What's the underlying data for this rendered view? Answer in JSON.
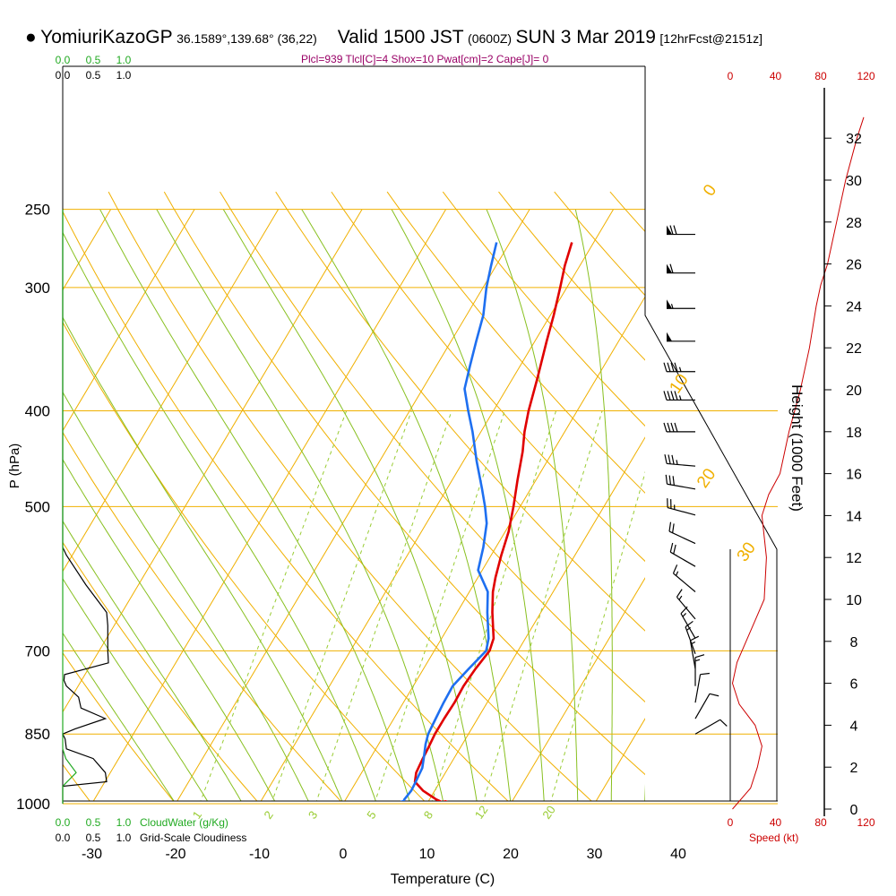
{
  "header": {
    "station": "YomiuriKazoGP",
    "coords": "36.1589°,139.68° (36,22)",
    "valid": "Valid 1500 JST",
    "utc": "(0600Z)",
    "date": "SUN 3 Mar 2019",
    "forecast": "[12hrFcst@2151z]",
    "indices": "Plcl=939 Tlcl[C]=4 Shox=10 Pwat[cm]=2 Cape[J]= 0"
  },
  "colors": {
    "temperature": "#e00000",
    "dewpoint": "#1e6ff0",
    "isotherm": "#f0b000",
    "dry_adiabat": "#f0b000",
    "moist_adiabat": "#88c020",
    "mixing_ratio": "#99cc33",
    "cloud_water": "#22aa22",
    "wind_speed": "#cc0000",
    "indices_text": "#990066"
  },
  "chart_data": {
    "type": "line",
    "subtype": "skew-t log-p sounding",
    "xlabel": "Temperature (C)",
    "ylabel": "P (hPa)",
    "right_axis_label": "Height (1000 Feet)",
    "x_ticks": [
      -30,
      -20,
      -10,
      0,
      10,
      20,
      30,
      40
    ],
    "xlim": [
      -35,
      36
    ],
    "pressure_ticks": [
      250,
      300,
      400,
      500,
      700,
      850,
      1000
    ],
    "pressure_tick_labels": [
      "250",
      "300",
      "400",
      "500",
      "700",
      "850",
      "1000"
    ],
    "ylim": [
      1000,
      250
    ],
    "log_pressure": true,
    "height_ticks": [
      0,
      2,
      4,
      6,
      8,
      10,
      12,
      14,
      16,
      18,
      20,
      22,
      24,
      26,
      28,
      30,
      32
    ],
    "height_tick_labels": [
      "0",
      "2",
      "4",
      "6",
      "8",
      "10",
      "12",
      "14",
      "16",
      "18",
      "20",
      "22",
      "24",
      "26",
      "28",
      "30",
      "32"
    ],
    "series": [
      {
        "name": "Temperature",
        "points": [
          [
            1000,
            12.2
          ],
          [
            990,
            10.8
          ],
          [
            970,
            8.6
          ],
          [
            950,
            7.0
          ],
          [
            930,
            6.5
          ],
          [
            900,
            6.3
          ],
          [
            880,
            6.2
          ],
          [
            850,
            6.0
          ],
          [
            820,
            6.0
          ],
          [
            790,
            6.1
          ],
          [
            760,
            6.0
          ],
          [
            730,
            6.2
          ],
          [
            700,
            6.6
          ],
          [
            680,
            6.2
          ],
          [
            640,
            4.2
          ],
          [
            610,
            2.8
          ],
          [
            590,
            2.1
          ],
          [
            560,
            1.2
          ],
          [
            530,
            0.4
          ],
          [
            500,
            -0.8
          ],
          [
            470,
            -2.2
          ],
          [
            440,
            -3.6
          ],
          [
            420,
            -4.8
          ],
          [
            400,
            -5.8
          ],
          [
            370,
            -7.1
          ],
          [
            340,
            -8.6
          ],
          [
            320,
            -9.6
          ],
          [
            300,
            -10.8
          ],
          [
            285,
            -11.8
          ],
          [
            270,
            -12.6
          ]
        ]
      },
      {
        "name": "Dewpoint",
        "points": [
          [
            1000,
            7.1
          ],
          [
            990,
            7.0
          ],
          [
            970,
            7.2
          ],
          [
            950,
            7.1
          ],
          [
            920,
            6.9
          ],
          [
            900,
            6.4
          ],
          [
            870,
            5.6
          ],
          [
            850,
            5.2
          ],
          [
            820,
            5.0
          ],
          [
            790,
            4.8
          ],
          [
            760,
            4.7
          ],
          [
            730,
            5.4
          ],
          [
            700,
            6.2
          ],
          [
            680,
            5.6
          ],
          [
            640,
            3.6
          ],
          [
            610,
            2.2
          ],
          [
            580,
            -0.5
          ],
          [
            550,
            -1.5
          ],
          [
            520,
            -2.8
          ],
          [
            500,
            -4.2
          ],
          [
            480,
            -5.8
          ],
          [
            450,
            -8.4
          ],
          [
            420,
            -11.0
          ],
          [
            400,
            -13.0
          ],
          [
            380,
            -15.0
          ],
          [
            360,
            -16.0
          ],
          [
            340,
            -17.0
          ],
          [
            320,
            -18.0
          ],
          [
            300,
            -19.6
          ],
          [
            285,
            -20.6
          ],
          [
            270,
            -21.6
          ]
        ]
      }
    ],
    "mixing_ratio_labels": [
      "1",
      "2",
      "3",
      "5",
      "8",
      "12",
      "20"
    ],
    "mixing_ratio_values": [
      1,
      2,
      3,
      5,
      8,
      12,
      20
    ],
    "isotherm_labels": [
      "0",
      "10",
      "20",
      "30"
    ],
    "isotherm_values": [
      0,
      10,
      20,
      30
    ],
    "isotherm_left_labels": [
      "10",
      "0",
      "-10",
      "-20",
      "-30"
    ],
    "isotherm_left_values": [
      10,
      0,
      -10,
      -20,
      -30
    ],
    "cloud_axis": {
      "water_ticks": [
        0.0,
        0.5,
        1.0
      ],
      "water_tick_labels": [
        "0.0",
        "0.5",
        "1.0"
      ],
      "cover_ticks": [
        0.0,
        0.5,
        1.0
      ],
      "cover_tick_labels": [
        "0.0",
        "0.5",
        "1.0"
      ],
      "water_label": "CloudWater (g/Kg)",
      "cover_label": "Grid-Scale Cloudiness"
    },
    "cloud_cover": [
      [
        1000,
        0
      ],
      [
        960,
        0
      ],
      [
        950,
        0.72
      ],
      [
        930,
        0.7
      ],
      [
        900,
        0.5
      ],
      [
        880,
        0.06
      ],
      [
        860,
        0.04
      ],
      [
        850,
        0
      ],
      [
        840,
        0.2
      ],
      [
        820,
        0.7
      ],
      [
        800,
        0.3
      ],
      [
        780,
        0.26
      ],
      [
        760,
        0.06
      ],
      [
        750,
        0.02
      ],
      [
        740,
        0.03
      ],
      [
        720,
        0.75
      ],
      [
        700,
        0.74
      ],
      [
        660,
        0.74
      ],
      [
        640,
        0.72
      ],
      [
        600,
        0.38
      ],
      [
        560,
        0.06
      ],
      [
        550,
        0
      ],
      [
        250,
        0
      ]
    ],
    "cloud_water": [
      [
        1000,
        0
      ],
      [
        960,
        0
      ],
      [
        930,
        0.22
      ],
      [
        900,
        0.05
      ],
      [
        880,
        0
      ],
      [
        250,
        0
      ]
    ],
    "wind_speed_axis": {
      "ticks": [
        0,
        40,
        80,
        120
      ],
      "tick_labels": [
        "0",
        "40",
        "80",
        "120"
      ],
      "label": "Speed (kt)"
    },
    "wind_speed_profile_kft": [
      [
        0,
        2
      ],
      [
        1,
        18
      ],
      [
        2,
        24
      ],
      [
        3,
        28
      ],
      [
        4,
        22
      ],
      [
        5,
        8
      ],
      [
        6,
        2
      ],
      [
        7,
        6
      ],
      [
        8,
        14
      ],
      [
        9,
        22
      ],
      [
        10,
        30
      ],
      [
        12,
        32
      ],
      [
        14,
        28
      ],
      [
        15,
        34
      ],
      [
        16,
        44
      ],
      [
        18,
        52
      ],
      [
        20,
        62
      ],
      [
        22,
        70
      ],
      [
        24,
        76
      ],
      [
        25,
        80
      ],
      [
        26,
        86
      ],
      [
        28,
        94
      ],
      [
        30,
        102
      ],
      [
        32,
        112
      ],
      [
        33,
        118
      ]
    ],
    "wind_barbs": [
      {
        "p": 265,
        "dir": 270,
        "speed": 70
      },
      {
        "p": 290,
        "dir": 270,
        "speed": 60
      },
      {
        "p": 315,
        "dir": 270,
        "speed": 55
      },
      {
        "p": 340,
        "dir": 270,
        "speed": 50
      },
      {
        "p": 365,
        "dir": 270,
        "speed": 45
      },
      {
        "p": 390,
        "dir": 270,
        "speed": 45
      },
      {
        "p": 420,
        "dir": 270,
        "speed": 40
      },
      {
        "p": 455,
        "dir": 275,
        "speed": 35
      },
      {
        "p": 480,
        "dir": 280,
        "speed": 30
      },
      {
        "p": 510,
        "dir": 285,
        "speed": 25
      },
      {
        "p": 545,
        "dir": 295,
        "speed": 20
      },
      {
        "p": 575,
        "dir": 300,
        "speed": 20
      },
      {
        "p": 610,
        "dir": 310,
        "speed": 15
      },
      {
        "p": 650,
        "dir": 320,
        "speed": 15
      },
      {
        "p": 680,
        "dir": 330,
        "speed": 15
      },
      {
        "p": 705,
        "dir": 340,
        "speed": 15
      },
      {
        "p": 730,
        "dir": 350,
        "speed": 15
      },
      {
        "p": 760,
        "dir": 360,
        "speed": 15
      },
      {
        "p": 790,
        "dir": 10,
        "speed": 10
      },
      {
        "p": 820,
        "dir": 30,
        "speed": 10
      },
      {
        "p": 850,
        "dir": 60,
        "speed": 10
      }
    ]
  }
}
